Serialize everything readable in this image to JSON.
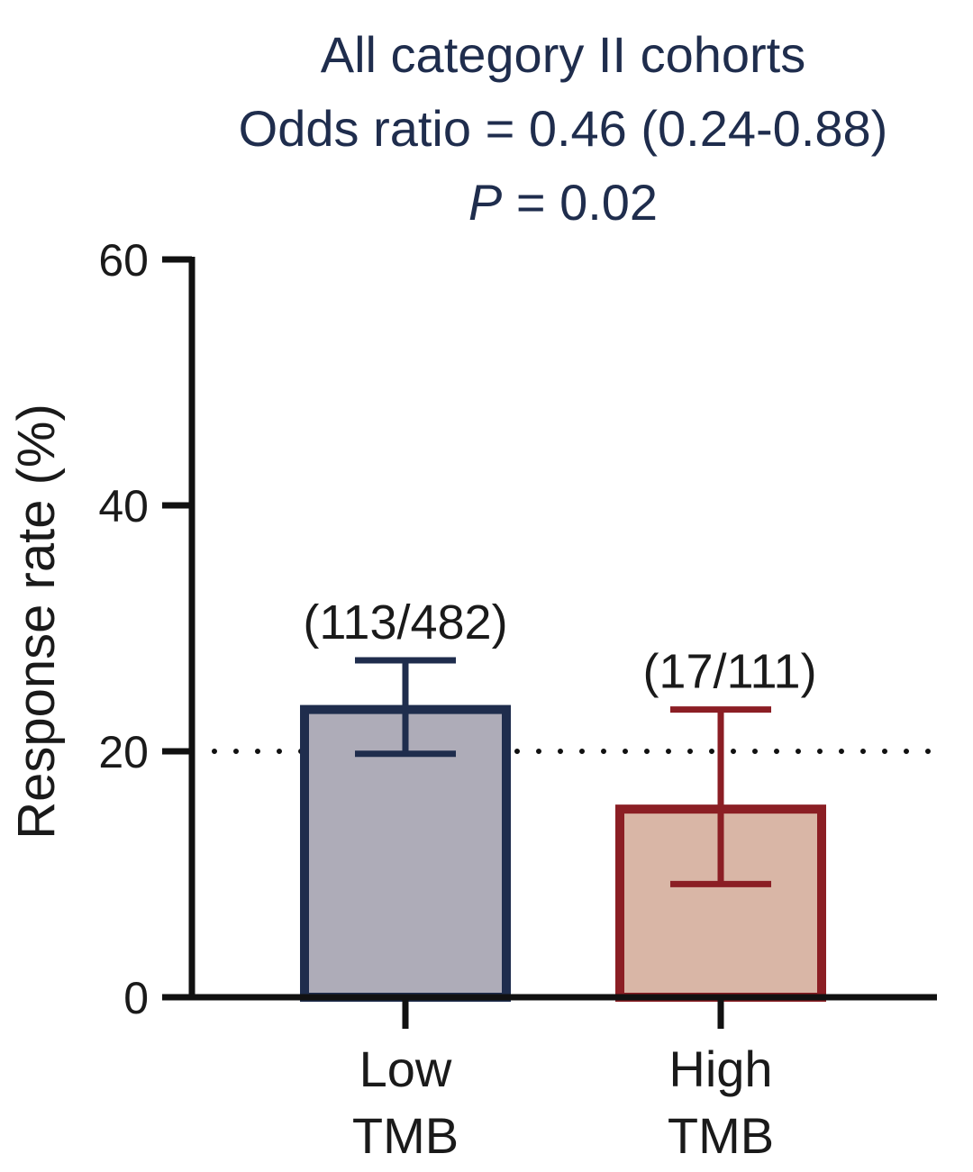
{
  "chart_data": {
    "type": "bar",
    "title_lines": [
      "All category II cohorts",
      "Odds ratio = 0.46 (0.24-0.88)"
    ],
    "p_value": {
      "symbol": "P",
      "rest": " = 0.02"
    },
    "ylabel": "Response rate (%)",
    "ylim": [
      0,
      60
    ],
    "yticks": [
      "0",
      "20",
      "40",
      "60"
    ],
    "reference_line": 20,
    "categories": [
      {
        "line1": "Low",
        "line2": "TMB"
      },
      {
        "line1": "High",
        "line2": "TMB"
      }
    ],
    "bars": [
      {
        "name": "Low TMB",
        "value": 23.4,
        "ci_low": 19.8,
        "ci_high": 27.4,
        "count_label": "(113/482)",
        "fill": "#aeacb8",
        "stroke": "#1f2d4d"
      },
      {
        "name": "High TMB",
        "value": 15.3,
        "ci_low": 9.2,
        "ci_high": 23.4,
        "count_label": "(17/111)",
        "fill": "#d9b6a6",
        "stroke": "#8b1e24"
      }
    ]
  }
}
